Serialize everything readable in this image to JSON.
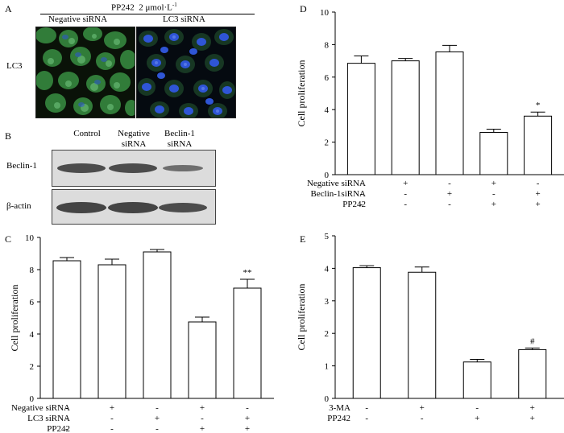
{
  "panel_a": {
    "letter": "A",
    "treatment": "PP242",
    "dose": "2 μmol·L",
    "dose_sup": "-1",
    "col_labels": [
      "Negative siRNA",
      "LC3 siRNA"
    ],
    "row_label": "LC3"
  },
  "panel_b": {
    "letter": "B",
    "col_labels": [
      "Control",
      "Negative siRNA",
      "Beclin-1 siRNA"
    ],
    "row_labels": [
      "Beclin-1",
      "β-actin"
    ]
  },
  "colors": {
    "fluor_green": "#3fa04a",
    "fluor_blue": "#2f55d6",
    "micro_bg": "#0a1208",
    "blot_band": "#333333"
  },
  "chart_data": [
    {
      "id": "C",
      "letter": "C",
      "type": "bar",
      "ylabel": "Cell proliferation",
      "ylim": [
        0,
        10
      ],
      "yticks": [
        0,
        2,
        4,
        6,
        8,
        10
      ],
      "values": [
        8.55,
        8.3,
        9.1,
        4.75,
        6.85
      ],
      "errors": [
        0.2,
        0.35,
        0.15,
        0.3,
        0.55
      ],
      "annotations": [
        "",
        "",
        "",
        "",
        "**"
      ],
      "conditions": [
        {
          "label": "Negative siRNA",
          "signs": [
            "-",
            "+",
            "-",
            "+",
            "-"
          ]
        },
        {
          "label": "LC3 siRNA",
          "signs": [
            "-",
            "-",
            "+",
            "-",
            "+"
          ]
        },
        {
          "label": "PP242",
          "signs": [
            "-",
            "-",
            "-",
            "+",
            "+"
          ]
        }
      ]
    },
    {
      "id": "D",
      "letter": "D",
      "type": "bar",
      "ylabel": "Cell proliferation",
      "ylim": [
        0,
        10
      ],
      "yticks": [
        0,
        2,
        4,
        6,
        8,
        10
      ],
      "values": [
        6.85,
        7.0,
        7.55,
        2.6,
        3.6
      ],
      "errors": [
        0.45,
        0.15,
        0.4,
        0.2,
        0.25
      ],
      "annotations": [
        "",
        "",
        "",
        "",
        "*"
      ],
      "conditions": [
        {
          "label": "Negative siRNA",
          "signs": [
            "-",
            "+",
            "-",
            "+",
            "-"
          ]
        },
        {
          "label": "Beclin-1siRNA",
          "signs": [
            "-",
            "-",
            "+",
            "-",
            "+"
          ]
        },
        {
          "label": "PP242",
          "signs": [
            "-",
            "-",
            "-",
            "+",
            "+"
          ]
        }
      ]
    },
    {
      "id": "E",
      "letter": "E",
      "type": "bar",
      "ylabel": "Cell proliferation",
      "ylim": [
        0,
        5
      ],
      "yticks": [
        0,
        1,
        2,
        3,
        4,
        5
      ],
      "values": [
        4.02,
        3.88,
        1.12,
        1.5
      ],
      "errors": [
        0.06,
        0.16,
        0.08,
        0.05
      ],
      "annotations": [
        "",
        "",
        "",
        "#"
      ],
      "conditions": [
        {
          "label": "3-MA",
          "signs": [
            "-",
            "+",
            "-",
            "+"
          ]
        },
        {
          "label": "PP242",
          "signs": [
            "-",
            "-",
            "+",
            "+"
          ]
        }
      ]
    }
  ]
}
